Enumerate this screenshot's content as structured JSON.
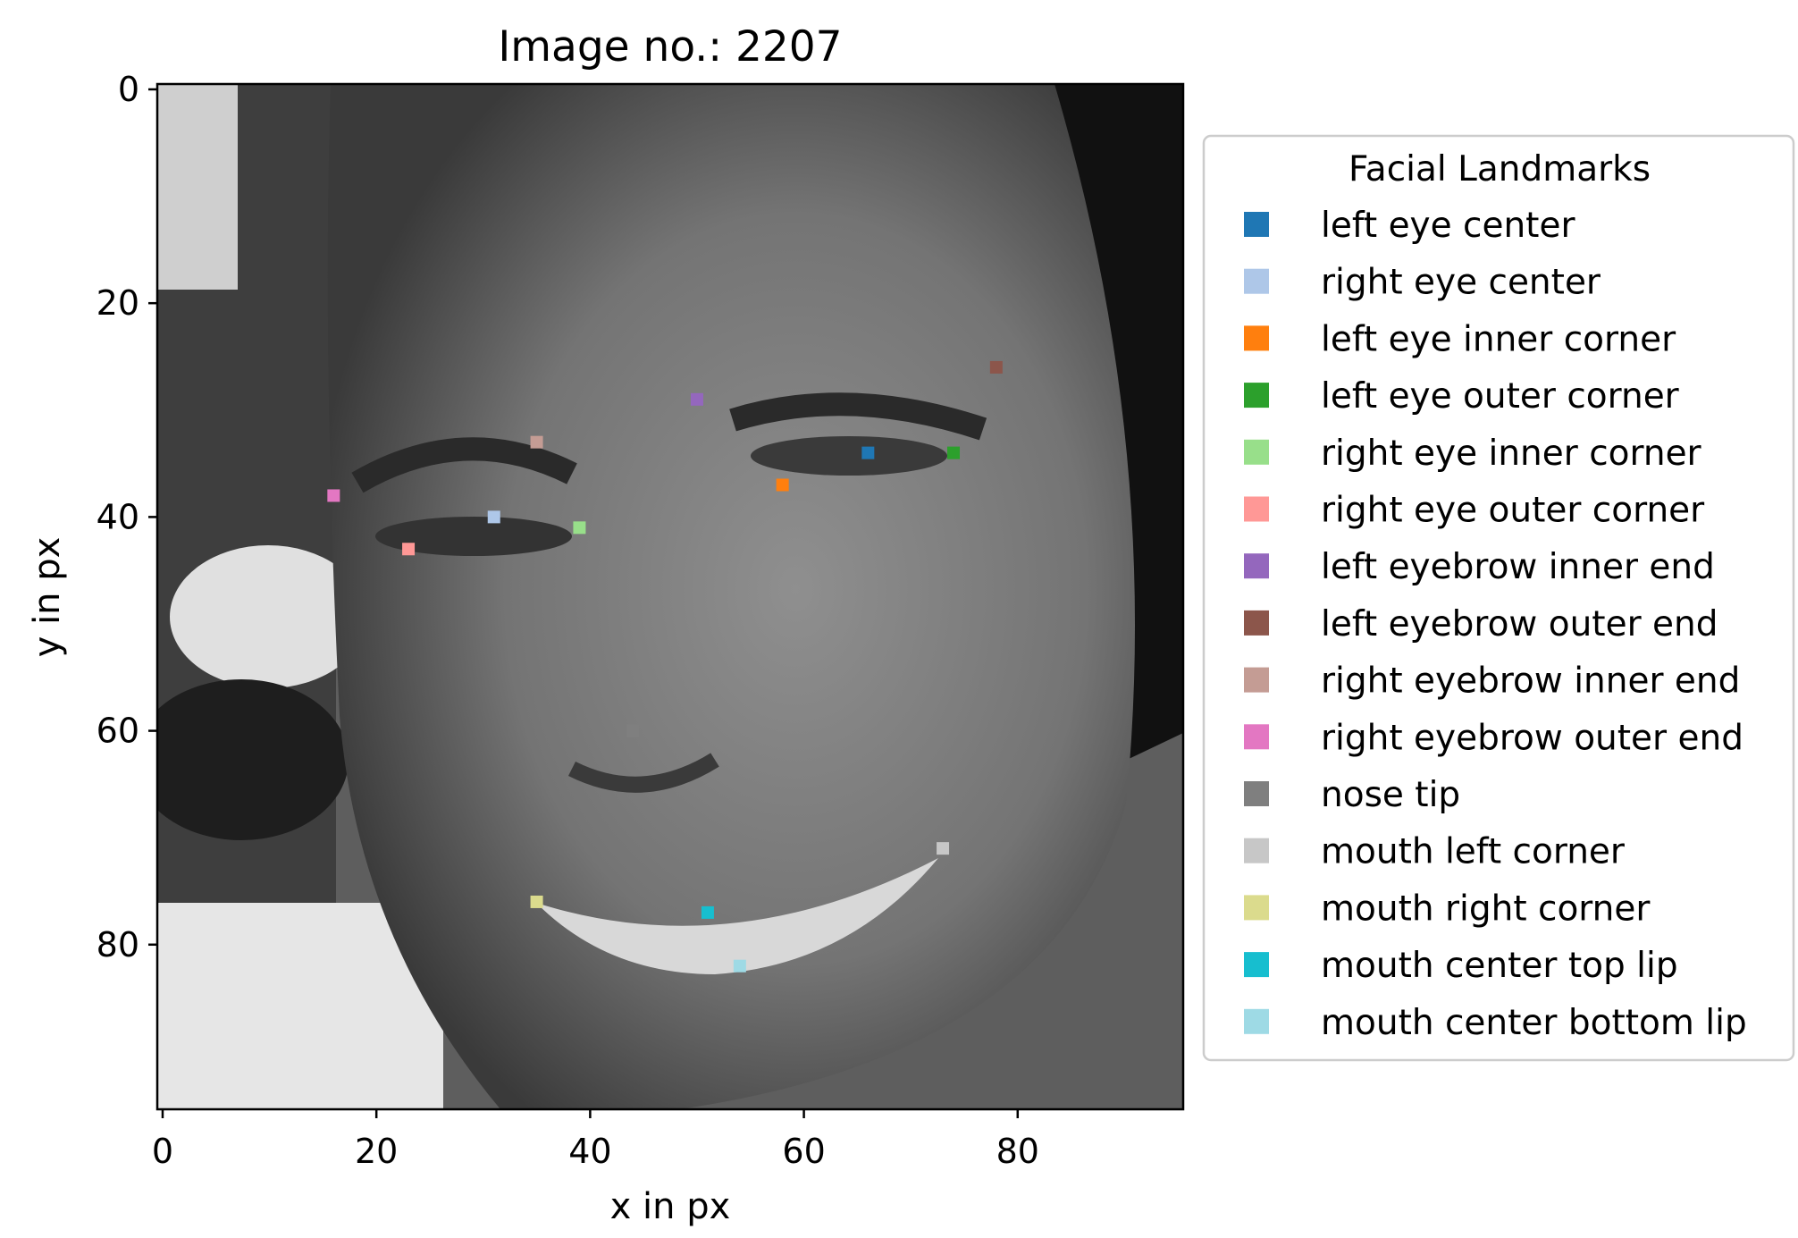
{
  "chart_data": {
    "type": "scatter",
    "title": "Image no.: 2207",
    "xlabel": "x in px",
    "ylabel": "y in px",
    "xlim": [
      0,
      96
    ],
    "ylim": [
      96,
      0
    ],
    "x_ticks": [
      0,
      20,
      40,
      60,
      80
    ],
    "y_ticks": [
      0,
      20,
      40,
      60,
      80
    ],
    "grid": false,
    "background": "grayscale face photograph (96x96)",
    "legend": {
      "title": "Facial Landmarks",
      "placement": "outside-right"
    },
    "series": [
      {
        "name": "left eye center",
        "color": "#1f77b4",
        "x": [
          66
        ],
        "y": [
          34
        ]
      },
      {
        "name": "right eye center",
        "color": "#aec7e8",
        "x": [
          31
        ],
        "y": [
          40
        ]
      },
      {
        "name": "left eye inner corner",
        "color": "#ff7f0e",
        "x": [
          58
        ],
        "y": [
          37
        ]
      },
      {
        "name": "left eye outer corner",
        "color": "#2ca02c",
        "x": [
          74
        ],
        "y": [
          34
        ]
      },
      {
        "name": "right eye inner corner",
        "color": "#98df8a",
        "x": [
          39
        ],
        "y": [
          41
        ]
      },
      {
        "name": "right eye outer corner",
        "color": "#ff9896",
        "x": [
          23
        ],
        "y": [
          43
        ]
      },
      {
        "name": "left eyebrow inner end",
        "color": "#9467bd",
        "x": [
          50
        ],
        "y": [
          29
        ]
      },
      {
        "name": "left eyebrow outer end",
        "color": "#8c564b",
        "x": [
          78
        ],
        "y": [
          26
        ]
      },
      {
        "name": "right eyebrow inner end",
        "color": "#c49c94",
        "x": [
          35
        ],
        "y": [
          33
        ]
      },
      {
        "name": "right eyebrow outer end",
        "color": "#e377c2",
        "x": [
          16
        ],
        "y": [
          38
        ]
      },
      {
        "name": "nose tip",
        "color": "#7f7f7f",
        "x": [
          44
        ],
        "y": [
          60
        ]
      },
      {
        "name": "mouth left corner",
        "color": "#c7c7c7",
        "x": [
          73
        ],
        "y": [
          71
        ]
      },
      {
        "name": "mouth right corner",
        "color": "#dbdb8d",
        "x": [
          35
        ],
        "y": [
          76
        ]
      },
      {
        "name": "mouth center top lip",
        "color": "#17becf",
        "x": [
          51
        ],
        "y": [
          77
        ]
      },
      {
        "name": "mouth center bottom lip",
        "color": "#9edae5",
        "x": [
          54
        ],
        "y": [
          82
        ]
      }
    ]
  }
}
